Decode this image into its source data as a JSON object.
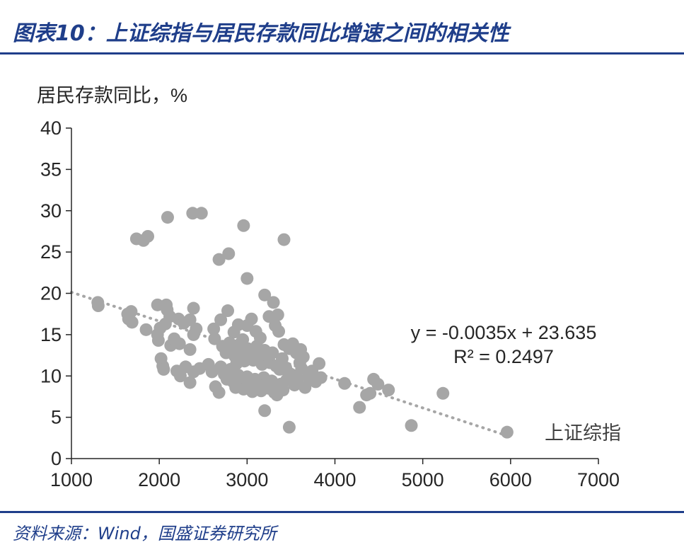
{
  "header": {
    "title": "图表10：上证综指与居民存款同比增速之间的相关性"
  },
  "footer": {
    "source": "资料来源：Wind，国盛证券研究所"
  },
  "colors": {
    "accent": "#1f3e8a",
    "points": "#a6a6a6",
    "trendline": "#a6a6a6",
    "text": "#262626"
  },
  "chart_data": {
    "type": "scatter",
    "title": "",
    "xlabel": "上证综指",
    "ylabel": "居民存款同比，%",
    "xlim": [
      1000,
      7000
    ],
    "ylim": [
      0,
      40
    ],
    "xticks": [
      "1000",
      "2000",
      "3000",
      "4000",
      "5000",
      "6000",
      "7000"
    ],
    "yticks": [
      "0",
      "5",
      "10",
      "15",
      "20",
      "25",
      "30",
      "35",
      "40"
    ],
    "grid": false,
    "legend": "none",
    "trendline": {
      "slope": -0.0035,
      "intercept": 23.635
    },
    "annotations": {
      "equation": "y = -0.0035x + 23.635",
      "r2": "R² = 0.2497"
    },
    "points": [
      [
        2095,
        29.2
      ],
      [
        2380,
        29.7
      ],
      [
        2480,
        29.7
      ],
      [
        2960,
        28.2
      ],
      [
        3420,
        26.5
      ],
      [
        1740,
        26.6
      ],
      [
        1820,
        26.4
      ],
      [
        1870,
        26.9
      ],
      [
        2680,
        24.1
      ],
      [
        2790,
        24.8
      ],
      [
        3000,
        21.8
      ],
      [
        3200,
        19.8
      ],
      [
        1300,
        18.9
      ],
      [
        1305,
        18.5
      ],
      [
        1640,
        17.5
      ],
      [
        1650,
        16.9
      ],
      [
        1690,
        16.5
      ],
      [
        1680,
        17.8
      ],
      [
        1980,
        18.6
      ],
      [
        2080,
        18.6
      ],
      [
        2090,
        18.0
      ],
      [
        2120,
        17.2
      ],
      [
        2220,
        16.9
      ],
      [
        2280,
        16.4
      ],
      [
        2350,
        16.8
      ],
      [
        2390,
        18.2
      ],
      [
        2420,
        15.7
      ],
      [
        2390,
        15.0
      ],
      [
        1850,
        15.6
      ],
      [
        1980,
        15.0
      ],
      [
        1990,
        14.3
      ],
      [
        2010,
        15.8
      ],
      [
        2070,
        16.3
      ],
      [
        2130,
        13.7
      ],
      [
        2170,
        14.5
      ],
      [
        2230,
        13.9
      ],
      [
        2350,
        13.2
      ],
      [
        2020,
        12.1
      ],
      [
        2040,
        11.2
      ],
      [
        2050,
        10.8
      ],
      [
        2200,
        10.6
      ],
      [
        2240,
        10.0
      ],
      [
        2300,
        11.1
      ],
      [
        2350,
        9.2
      ],
      [
        2390,
        10.5
      ],
      [
        2460,
        10.9
      ],
      [
        2560,
        11.4
      ],
      [
        2600,
        10.5
      ],
      [
        2640,
        8.7
      ],
      [
        2680,
        8.0
      ],
      [
        2620,
        15.7
      ],
      [
        2630,
        14.5
      ],
      [
        2700,
        16.8
      ],
      [
        2780,
        17.9
      ],
      [
        2850,
        15.3
      ],
      [
        2900,
        16.2
      ],
      [
        2950,
        14.4
      ],
      [
        3000,
        16.1
      ],
      [
        3050,
        16.9
      ],
      [
        3100,
        15.4
      ],
      [
        3150,
        14.6
      ],
      [
        3250,
        17.2
      ],
      [
        3300,
        18.9
      ],
      [
        3350,
        17.4
      ],
      [
        3320,
        16.1
      ],
      [
        3360,
        15.4
      ],
      [
        3420,
        13.8
      ],
      [
        3480,
        13.3
      ],
      [
        3520,
        13.9
      ],
      [
        2720,
        13.6
      ],
      [
        2760,
        12.8
      ],
      [
        2800,
        14.0
      ],
      [
        2830,
        13.1
      ],
      [
        2860,
        12.4
      ],
      [
        2880,
        11.5
      ],
      [
        2910,
        13.8
      ],
      [
        2940,
        12.9
      ],
      [
        2970,
        11.8
      ],
      [
        3010,
        13.3
      ],
      [
        3040,
        12.6
      ],
      [
        3070,
        11.9
      ],
      [
        3110,
        13.6
      ],
      [
        3140,
        12.2
      ],
      [
        3170,
        11.4
      ],
      [
        3200,
        13.1
      ],
      [
        3230,
        12.5
      ],
      [
        3260,
        11.6
      ],
      [
        3290,
        12.8
      ],
      [
        3330,
        11.2
      ],
      [
        3370,
        10.8
      ],
      [
        3400,
        12.1
      ],
      [
        3440,
        11.0
      ],
      [
        3470,
        10.4
      ],
      [
        2700,
        11.1
      ],
      [
        2740,
        10.2
      ],
      [
        2770,
        9.6
      ],
      [
        2810,
        10.8
      ],
      [
        2840,
        9.3
      ],
      [
        2870,
        8.6
      ],
      [
        2900,
        10.1
      ],
      [
        2930,
        9.2
      ],
      [
        2960,
        8.4
      ],
      [
        3000,
        9.9
      ],
      [
        3030,
        8.8
      ],
      [
        3060,
        8.1
      ],
      [
        3090,
        9.6
      ],
      [
        3120,
        8.9
      ],
      [
        3160,
        8.2
      ],
      [
        3190,
        9.8
      ],
      [
        3220,
        9.1
      ],
      [
        3250,
        8.5
      ],
      [
        3280,
        9.4
      ],
      [
        3310,
        8.0
      ],
      [
        3340,
        7.7
      ],
      [
        3380,
        9.0
      ],
      [
        3410,
        8.3
      ],
      [
        3450,
        9.5
      ],
      [
        3500,
        10.2
      ],
      [
        3540,
        8.9
      ],
      [
        3580,
        9.6
      ],
      [
        3620,
        10.9
      ],
      [
        3660,
        8.6
      ],
      [
        3700,
        9.9
      ],
      [
        3740,
        10.6
      ],
      [
        3780,
        9.3
      ],
      [
        3820,
        11.5
      ],
      [
        3840,
        9.8
      ],
      [
        3600,
        11.6
      ],
      [
        3640,
        12.3
      ],
      [
        3560,
        12.8
      ],
      [
        3610,
        13.2
      ],
      [
        3200,
        5.8
      ],
      [
        3480,
        3.8
      ],
      [
        4110,
        9.1
      ],
      [
        4280,
        6.2
      ],
      [
        4360,
        7.7
      ],
      [
        4400,
        7.9
      ],
      [
        4440,
        9.6
      ],
      [
        4490,
        9.0
      ],
      [
        4610,
        8.3
      ],
      [
        4870,
        4.0
      ],
      [
        5230,
        7.9
      ],
      [
        5960,
        3.2
      ]
    ]
  }
}
